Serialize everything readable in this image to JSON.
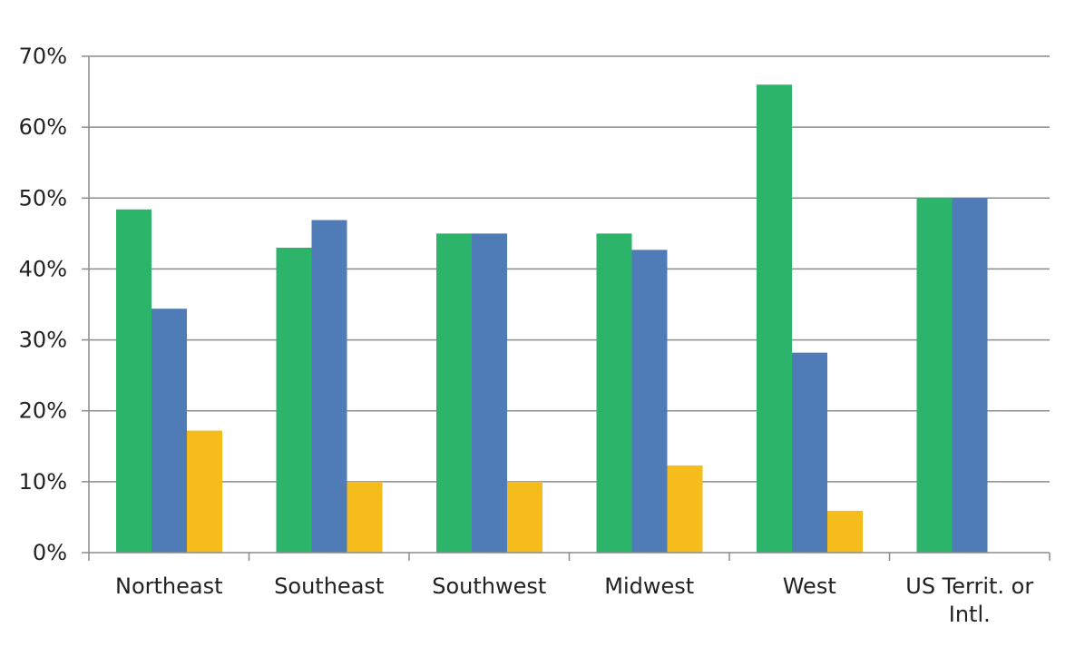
{
  "chart_data": {
    "type": "bar",
    "categories": [
      [
        "Northeast"
      ],
      [
        "Southeast"
      ],
      [
        "Southwest"
      ],
      [
        "Midwest"
      ],
      [
        "West"
      ],
      [
        "US Territ. or",
        "Intl."
      ]
    ],
    "series": [
      {
        "color": "#2db46b",
        "values": [
          48.4,
          43.0,
          45.0,
          45.0,
          66.0,
          50.0
        ]
      },
      {
        "color": "#4f7bb7",
        "values": [
          34.4,
          46.9,
          45.0,
          42.7,
          28.2,
          50.0
        ]
      },
      {
        "color": "#f5bc1c",
        "values": [
          17.2,
          10.0,
          10.0,
          12.3,
          5.9,
          0
        ]
      }
    ],
    "yticks": [
      "0%",
      "10%",
      "20%",
      "30%",
      "40%",
      "50%",
      "60%",
      "70%"
    ],
    "ylim": [
      0,
      70
    ],
    "grid": true,
    "legend": "none",
    "title": "",
    "xlabel": "",
    "ylabel": ""
  }
}
